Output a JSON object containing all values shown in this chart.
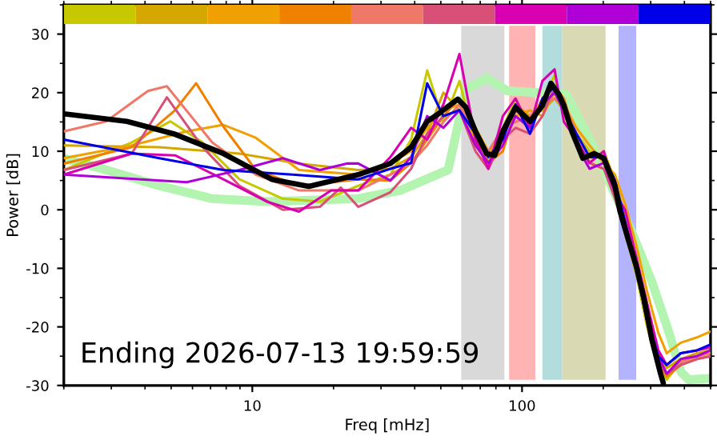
{
  "chart_data": {
    "type": "line",
    "xlabel": "Freq [mHz]",
    "ylabel": "Power [dB]",
    "log": "x",
    "xlim": [
      2,
      500
    ],
    "xticks": [
      10,
      100
    ],
    "ylim": [
      -30,
      35
    ],
    "yticks": [
      -30,
      -20,
      -10,
      0,
      10,
      20,
      30
    ],
    "grid": false,
    "legend": false,
    "annotations": [
      "Ending 2026-07-13 19:59:59"
    ],
    "bands": [
      {
        "axis": "x",
        "from": 59.5,
        "to": 86,
        "label": null,
        "color": "#d9d9d9"
      },
      {
        "axis": "x",
        "from": 89.6,
        "to": 112,
        "label": null,
        "color": "#ffb3b3"
      },
      {
        "axis": "x",
        "from": 119,
        "to": 141,
        "label": null,
        "color": "#b3dcdc"
      },
      {
        "axis": "x",
        "from": 141,
        "to": 204,
        "label": null,
        "color": "#d9d9b3"
      },
      {
        "axis": "x",
        "from": 228,
        "to": 265,
        "label": null,
        "color": "#b3b3ff"
      }
    ],
    "series": [
      {
        "color": "#c8c800",
        "x": [
          2,
          3.57,
          4.97,
          6.54,
          8.96,
          12.97,
          17.8,
          24.7,
          32.5,
          38.8,
          44.5,
          51.1,
          58.6,
          67.2,
          75.0,
          84.9,
          94.6,
          107,
          119,
          132,
          143,
          159,
          178,
          201,
          221,
          241,
          265,
          291,
          320,
          344,
          388,
          445,
          500
        ],
        "values": [
          6.8,
          11.5,
          15.1,
          11.5,
          5.2,
          1.9,
          1.4,
          4.1,
          6,
          12,
          23.8,
          15,
          22,
          11,
          8,
          14,
          19,
          14,
          18,
          23,
          16,
          13,
          10,
          9,
          3,
          -4,
          -11,
          -20,
          -27,
          -29,
          -26,
          -25,
          -24.5
        ]
      },
      {
        "color": "#d4a800",
        "x": [
          2,
          4.52,
          8.96,
          14.9,
          24.7,
          32.5,
          38.8,
          44.5,
          51.1,
          58.6,
          67.2,
          75.0,
          84.9,
          94.6,
          107,
          119,
          132,
          143,
          159,
          178,
          201,
          221,
          241,
          265,
          291,
          320,
          344,
          388,
          445,
          500
        ],
        "values": [
          11,
          10.7,
          9.6,
          7.9,
          6.8,
          7,
          9,
          13,
          20,
          17,
          14,
          10,
          12,
          18,
          16,
          17,
          19,
          17,
          12,
          8,
          10,
          5,
          -1,
          -9,
          -17,
          -24,
          -27,
          -25.5,
          -24.5,
          -24
        ]
      },
      {
        "color": "#f0a000",
        "x": [
          2,
          3.57,
          5.71,
          7.81,
          10.3,
          14.9,
          24.7,
          32.5,
          38.8,
          44.5,
          51.1,
          58.6,
          67.2,
          75.0,
          84.9,
          94.6,
          107,
          119,
          132,
          143,
          159,
          178,
          201,
          221,
          241,
          265,
          291,
          320,
          344,
          388,
          445,
          500
        ],
        "values": [
          8.8,
          11,
          13.4,
          14.5,
          12.3,
          6.8,
          6,
          8,
          10,
          14,
          17,
          18,
          12,
          9,
          13,
          16,
          17,
          16,
          20,
          18,
          14,
          11,
          8,
          6,
          1,
          -6,
          -14,
          -21,
          -24.5,
          -22.7,
          -21.8,
          -20.8
        ]
      },
      {
        "color": "#f08000",
        "x": [
          2,
          3.57,
          5.17,
          6.19,
          7.81,
          10.3,
          14.9,
          24.7,
          32.5,
          38.8,
          44.5,
          51.1,
          58.6,
          67.2,
          75.0,
          84.9,
          94.6,
          107,
          119,
          132,
          143,
          159,
          178,
          201,
          221,
          241,
          265,
          291,
          320,
          344,
          388,
          445,
          500
        ],
        "values": [
          7.9,
          10.7,
          17,
          21.6,
          14.2,
          6.8,
          4.1,
          5.2,
          5,
          8,
          12,
          16,
          19,
          14,
          8,
          10,
          17,
          15,
          19,
          21,
          19,
          12,
          8,
          7,
          4,
          -3,
          -10,
          -19,
          -26,
          -28.5,
          -26.5,
          -25.5,
          -25
        ]
      },
      {
        "color": "#f07868",
        "x": [
          2,
          2.87,
          4.1,
          4.82,
          7.1,
          10.3,
          14.9,
          24.7,
          32.5,
          38.8,
          44.5,
          51.1,
          58.6,
          67.2,
          75.0,
          84.9,
          94.6,
          107,
          119,
          132,
          143,
          159,
          178,
          201,
          221,
          241,
          265,
          291,
          320,
          344,
          388,
          445,
          500
        ],
        "values": [
          13.4,
          15.1,
          20.3,
          21.1,
          11.5,
          6,
          3.3,
          3.3,
          6,
          8,
          11,
          15,
          18,
          13,
          10,
          14,
          15,
          16,
          18,
          19,
          18,
          13,
          9,
          9,
          5,
          -2,
          -9,
          -18,
          -25,
          -28,
          -26,
          -25,
          -24.5
        ]
      },
      {
        "color": "#d85078",
        "x": [
          2,
          3.57,
          4.82,
          6.54,
          8.96,
          12.97,
          17.8,
          21.3,
          24.7,
          32.5,
          38.8,
          44.5,
          51.1,
          58.6,
          67.2,
          75.0,
          84.9,
          94.6,
          107,
          119,
          132,
          143,
          159,
          178,
          201,
          221,
          241,
          265,
          291,
          320,
          344,
          388,
          445,
          500
        ],
        "values": [
          6.8,
          9.6,
          19.2,
          10.7,
          4.1,
          0,
          0.5,
          3.8,
          0.5,
          3,
          7,
          13,
          16,
          17,
          10,
          7,
          12,
          14,
          13,
          16,
          21,
          18,
          12,
          8,
          7,
          2,
          -4,
          -10,
          -19,
          -26,
          -28,
          -26.5,
          -25.5,
          -25
        ]
      },
      {
        "color": "#d800b0",
        "x": [
          2,
          3.57,
          5.17,
          7.81,
          11.3,
          14.9,
          19.6,
          24.7,
          32.5,
          38.8,
          44.5,
          51.1,
          58.6,
          67.2,
          75.0,
          84.9,
          94.6,
          107,
          119,
          132,
          143,
          159,
          178,
          201,
          221,
          241,
          265,
          291,
          320,
          344,
          388,
          445,
          500
        ],
        "values": [
          6,
          9.6,
          9.3,
          5.2,
          1.4,
          -0.3,
          3.3,
          3.3,
          9,
          14,
          12,
          18,
          26.6,
          12,
          7,
          16,
          19,
          14,
          22,
          24,
          15,
          12,
          8,
          10,
          3,
          0,
          -8,
          -16,
          -24,
          -26.5,
          -24.5,
          -24,
          -23.5
        ]
      },
      {
        "color": "#b000d8",
        "x": [
          2,
          5.71,
          8.96,
          12.97,
          17.8,
          22.4,
          24.7,
          32.5,
          38.8,
          44.5,
          51.1,
          58.6,
          67.2,
          75.0,
          84.9,
          94.6,
          107,
          119,
          132,
          143,
          159,
          178,
          201,
          221,
          241,
          265,
          291,
          320,
          344,
          388,
          445,
          500
        ],
        "values": [
          6,
          4.7,
          6.8,
          8.8,
          6.8,
          7.9,
          7.9,
          5,
          9,
          16,
          14,
          17,
          11,
          8,
          11,
          16,
          14,
          18,
          20,
          17,
          11,
          7,
          8,
          3,
          -3,
          -9,
          -18,
          -25,
          -28,
          -25.5,
          -25,
          -24
        ]
      },
      {
        "color": "#0000e8",
        "x": [
          2,
          4.52,
          7.81,
          14.1,
          24.7,
          32.5,
          38.8,
          44.5,
          51.1,
          58.6,
          67.2,
          75.0,
          84.9,
          94.6,
          107,
          119,
          132,
          143,
          159,
          178,
          201,
          221,
          241,
          265,
          291,
          320,
          344,
          388,
          445,
          500
        ],
        "values": [
          12,
          8.8,
          6.8,
          6,
          5.2,
          7,
          8,
          21.6,
          16,
          17,
          13,
          9,
          12,
          18,
          13,
          19,
          21,
          17,
          13,
          9,
          9,
          5,
          -2,
          -10,
          -19,
          -25,
          -26.5,
          -24.5,
          -24,
          -23
        ]
      },
      {
        "color": "#b3f5b0",
        "x": [
          2,
          2.87,
          4.52,
          7.1,
          11.3,
          24.7,
          35.3,
          53.2,
          61.9,
          73.9,
          88.5,
          146,
          168,
          193,
          257,
          303,
          348,
          388,
          415,
          495
        ],
        "values": [
          8.8,
          6.8,
          4.1,
          1.9,
          1.4,
          1.9,
          3.3,
          6.8,
          20.5,
          22.5,
          20.3,
          19.7,
          14.2,
          8.8,
          -4.1,
          -12.3,
          -20.5,
          -27.7,
          -29,
          -28.8
        ]
      },
      {
        "color": "#000000",
        "x": [
          2,
          3.43,
          5.17,
          7.81,
          11.8,
          16.2,
          24.7,
          32.5,
          38.8,
          44.5,
          49.0,
          57.8,
          61.9,
          67.2,
          73.9,
          79.2,
          84.9,
          94.6,
          107,
          119,
          128,
          137,
          143,
          153,
          168,
          185,
          201,
          221,
          231,
          247,
          265,
          283,
          303,
          325,
          334
        ],
        "values": [
          16.4,
          15.1,
          12.9,
          9.6,
          5.2,
          4,
          6,
          7.9,
          10.7,
          15.1,
          16.4,
          18.9,
          17.5,
          13.4,
          9.6,
          9.3,
          13.4,
          17.5,
          15.1,
          17.8,
          21.6,
          19.7,
          17.8,
          13.4,
          8.8,
          9.6,
          8.8,
          4.1,
          -0.3,
          -4.9,
          -9.6,
          -15.1,
          -22.2,
          -27.7,
          -29.6
        ]
      }
    ]
  }
}
